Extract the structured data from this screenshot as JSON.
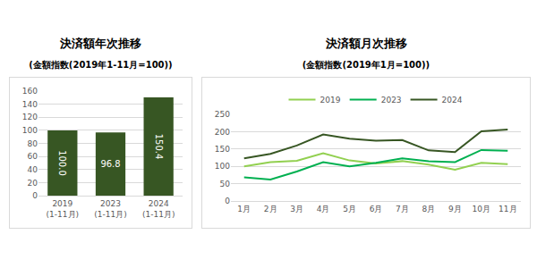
{
  "chart_data": [
    {
      "type": "bar",
      "title": "決済額年次推移",
      "subtitle": "(金額指数(2019年1-11月=100))",
      "categories": [
        "2019\n(1-11月)",
        "2023\n(1-11月)",
        "2024\n(1-11月)"
      ],
      "values": [
        100.0,
        96.8,
        150.4
      ],
      "value_labels": [
        "100.0",
        "96.8",
        "150.4"
      ],
      "data_labels": true,
      "color": "#375623",
      "ylim": [
        0,
        160
      ],
      "yticks": [
        0,
        20,
        40,
        60,
        80,
        100,
        120,
        140,
        160
      ],
      "grid": true
    },
    {
      "type": "line",
      "title": "決済額月次推移",
      "subtitle": "(金額指数(2019年1月=100))",
      "categories": [
        "1月",
        "2月",
        "3月",
        "4月",
        "5月",
        "6月",
        "7月",
        "8月",
        "9月",
        "10月",
        "11月"
      ],
      "series": [
        {
          "name": "2019",
          "color": "#92d050",
          "values": [
            100,
            112,
            116,
            138,
            117,
            108,
            115,
            105,
            90,
            110,
            106
          ]
        },
        {
          "name": "2023",
          "color": "#00b050",
          "values": [
            68,
            62,
            85,
            112,
            100,
            110,
            123,
            115,
            112,
            147,
            145
          ]
        },
        {
          "name": "2024",
          "color": "#375623",
          "values": [
            123,
            136,
            160,
            192,
            180,
            174,
            176,
            146,
            141,
            201,
            206
          ]
        }
      ],
      "legend": "top",
      "ylim": [
        0,
        250
      ],
      "yticks": [
        0,
        50,
        100,
        150,
        200,
        250
      ],
      "grid": true
    }
  ]
}
